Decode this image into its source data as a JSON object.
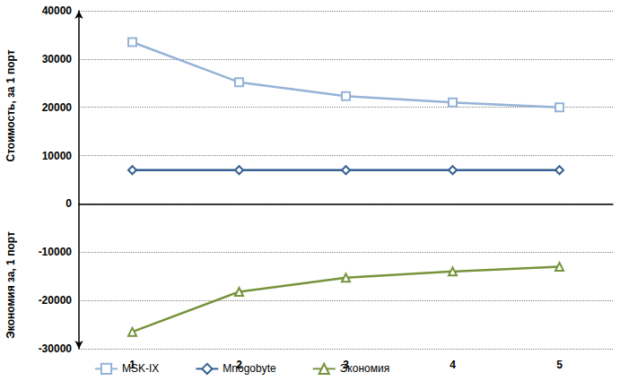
{
  "chart_data": {
    "type": "line",
    "ylabel": [
      "Стоимость, за 1 порт",
      "Экономия за, 1 порт"
    ],
    "categories": [
      "1",
      "2",
      "3",
      "4",
      "5"
    ],
    "series": [
      {
        "name": "MSK-IX",
        "color": "#95b3d7",
        "marker": "square",
        "values": [
          33500,
          25200,
          22300,
          21000,
          20000
        ]
      },
      {
        "name": "Mnogobyte",
        "color": "#376092",
        "marker": "diamond",
        "values": [
          7000,
          7000,
          7000,
          7000,
          7000
        ]
      },
      {
        "name": "Экономия",
        "color": "#77933c",
        "marker": "triangle",
        "values": [
          -26500,
          -18200,
          -15300,
          -14000,
          -13000
        ]
      }
    ],
    "ylim": [
      -30000,
      40000
    ],
    "yticks": [
      -30000,
      -20000,
      -10000,
      0,
      10000,
      20000,
      30000,
      40000
    ],
    "grid": true,
    "legend": "bottom-left"
  }
}
